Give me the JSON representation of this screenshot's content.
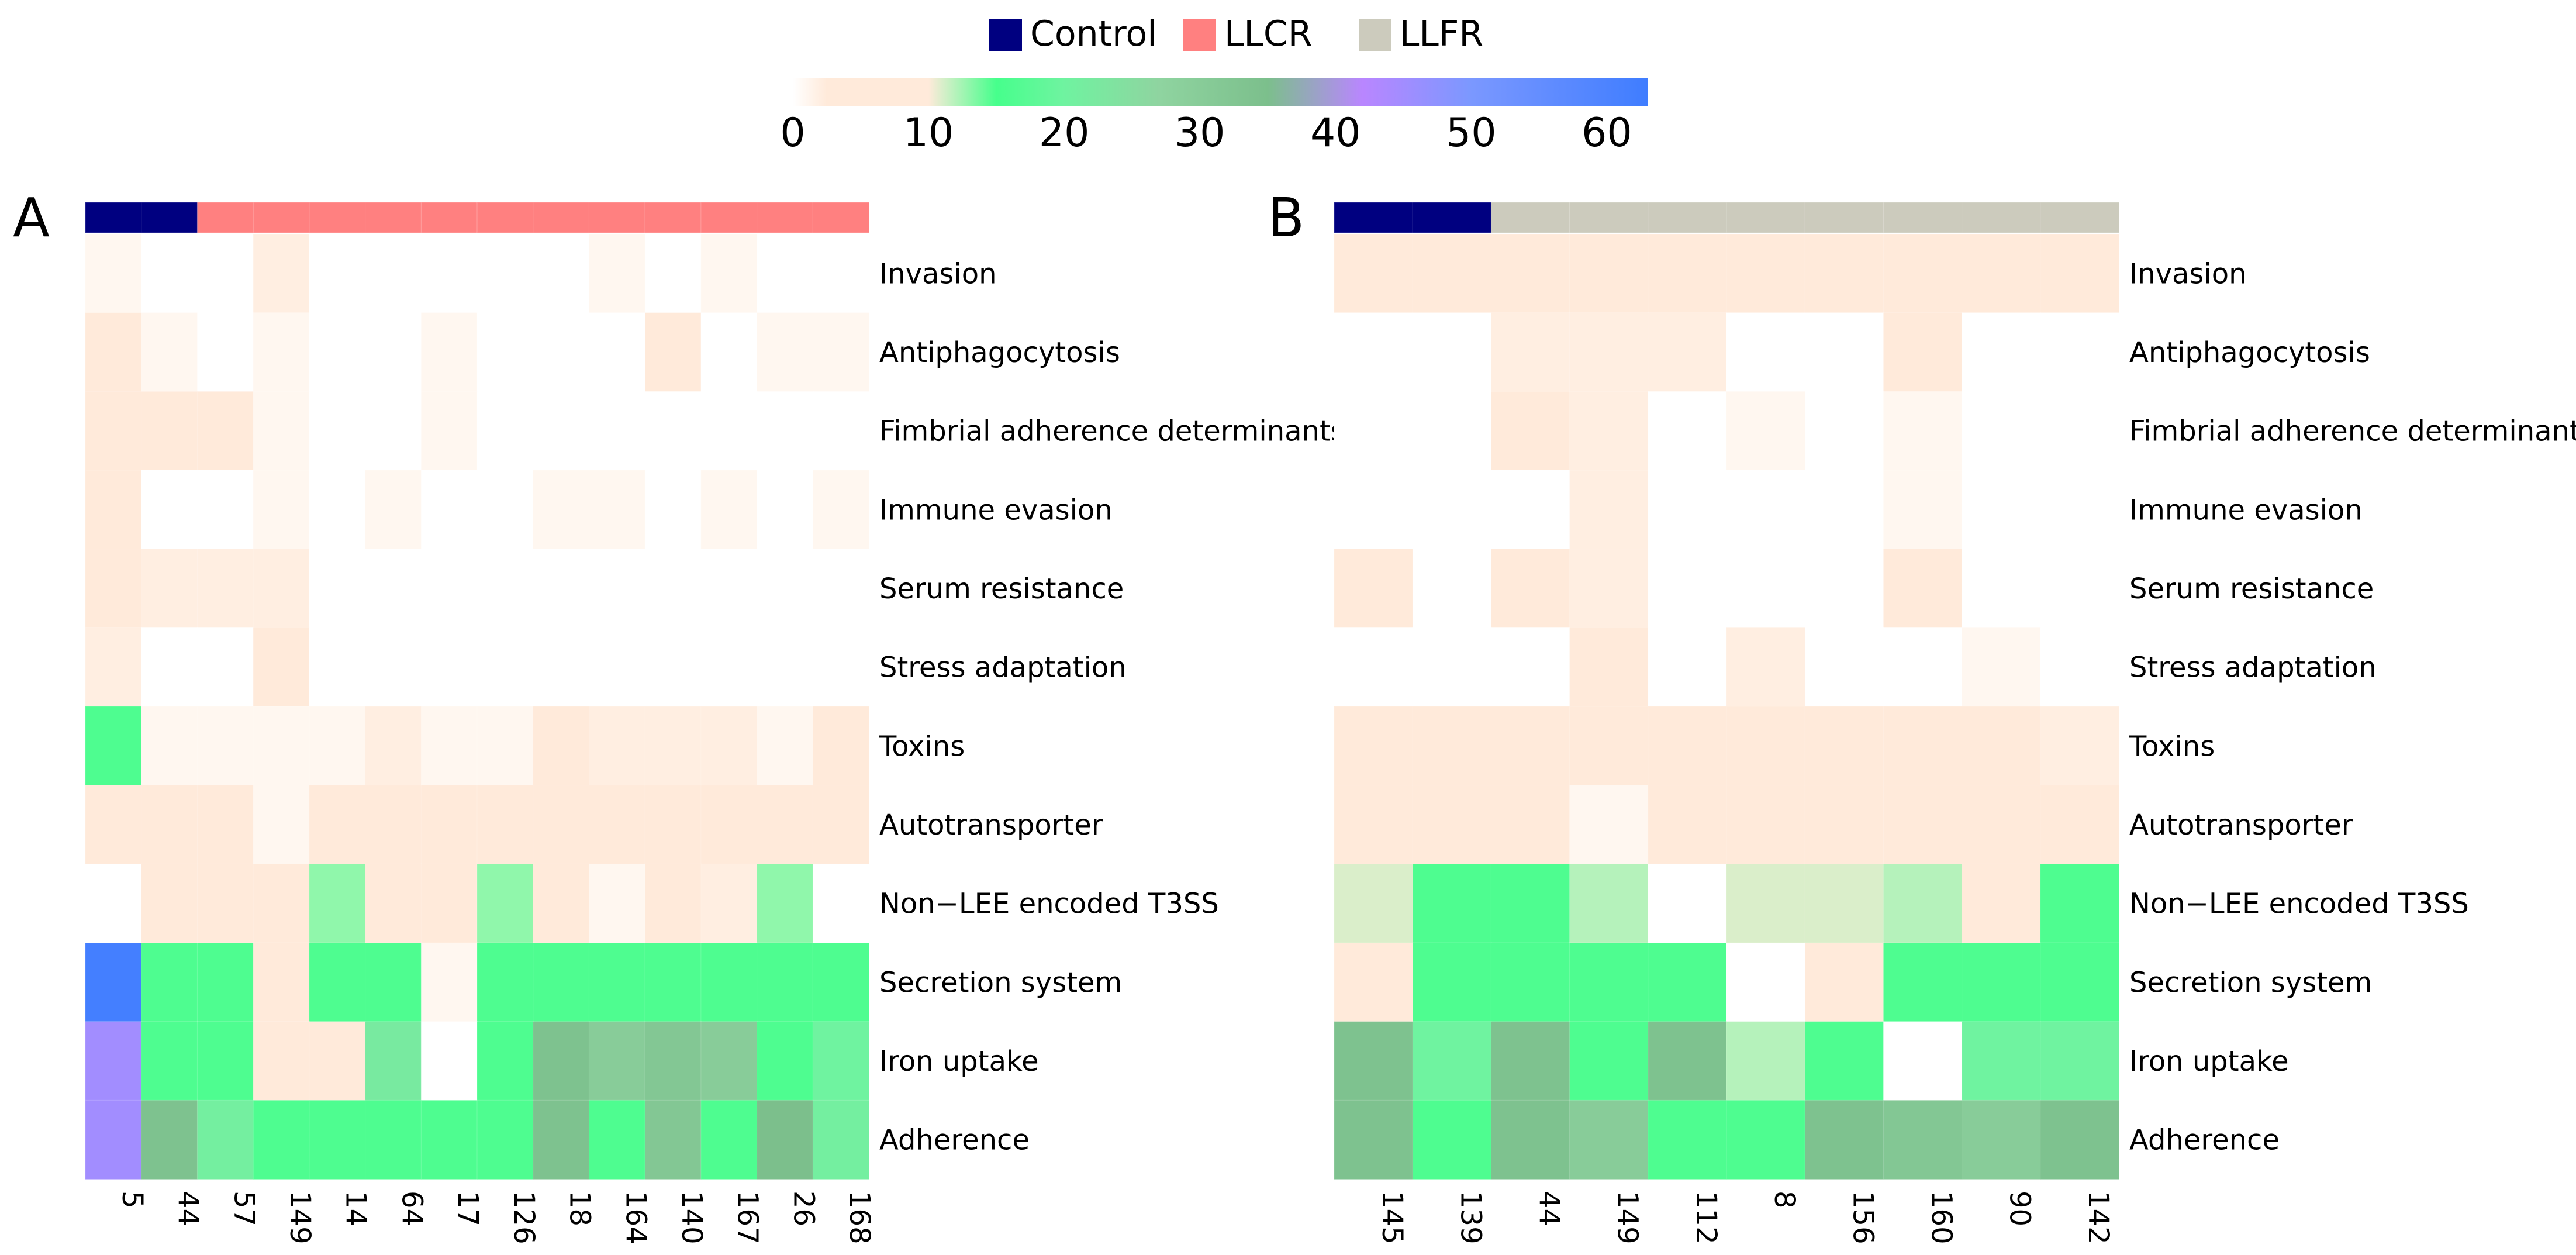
{
  "legend": {
    "groups": [
      {
        "name": "Control",
        "color": "#000080"
      },
      {
        "name": "LLCR",
        "color": "#ff8080"
      },
      {
        "name": "LLFR",
        "color": "#cccbbd"
      }
    ],
    "colorbar": {
      "ticks": [
        "0",
        "10",
        "20",
        "30",
        "40",
        "50",
        "60"
      ],
      "range": [
        0,
        63
      ],
      "stops": [
        {
          "v": 0,
          "color": "#ffffff"
        },
        {
          "v": 2.5,
          "color": "#ffeada"
        },
        {
          "v": 10,
          "color": "#ffeada"
        },
        {
          "v": 15,
          "color": "#46ff8c"
        },
        {
          "v": 20,
          "color": "#6ff3a0"
        },
        {
          "v": 27,
          "color": "#8fd4a0"
        },
        {
          "v": 35,
          "color": "#7cbf8c"
        },
        {
          "v": 42,
          "color": "#b986ff"
        },
        {
          "v": 50,
          "color": "#7b98ff"
        },
        {
          "v": 63,
          "color": "#3f7dff"
        }
      ]
    }
  },
  "chart_data": [
    {
      "type": "heatmap",
      "panel_label": "A",
      "rows": [
        "Invasion",
        "Antiphagocytosis",
        "Fimbrial adherence determinants",
        "Immune evasion",
        "Serum resistance",
        "Stress adaptation",
        "Toxins",
        "Autotransporter",
        "Non−LEE encoded T3SS",
        "Secretion system",
        "Iron uptake",
        "Adherence"
      ],
      "columns": [
        "5",
        "44",
        "57",
        "149",
        "14",
        "64",
        "17",
        "126",
        "18",
        "164",
        "140",
        "167",
        "26",
        "168"
      ],
      "column_groups": [
        "Control",
        "Control",
        "LLCR",
        "LLCR",
        "LLCR",
        "LLCR",
        "LLCR",
        "LLCR",
        "LLCR",
        "LLCR",
        "LLCR",
        "LLCR",
        "LLCR",
        "LLCR"
      ],
      "values": [
        [
          1,
          0,
          0,
          2,
          0,
          0,
          0,
          0,
          0,
          1,
          0,
          1,
          0,
          0
        ],
        [
          4,
          1,
          0,
          1,
          0,
          0,
          1,
          0,
          0,
          0,
          7,
          0,
          1,
          1
        ],
        [
          4,
          3,
          5,
          1,
          0,
          0,
          1,
          0,
          0,
          0,
          0,
          0,
          0,
          0
        ],
        [
          4,
          0,
          0,
          1,
          0,
          1,
          0,
          0,
          1,
          1,
          0,
          1,
          0,
          1
        ],
        [
          4,
          2,
          2,
          2,
          0,
          0,
          0,
          0,
          0,
          0,
          0,
          0,
          0,
          0
        ],
        [
          2,
          0,
          0,
          3,
          0,
          0,
          0,
          0,
          0,
          0,
          0,
          0,
          0,
          0
        ],
        [
          16,
          1,
          1,
          1,
          1,
          2,
          1,
          1,
          4,
          2,
          2,
          2,
          1,
          4
        ],
        [
          5,
          5,
          5,
          1,
          5,
          5,
          5,
          5,
          5,
          5,
          5,
          5,
          5,
          5
        ],
        [
          0,
          5,
          5,
          5,
          13,
          5,
          6,
          13,
          5,
          1,
          6,
          2,
          13,
          0
        ],
        [
          62,
          16,
          16,
          6,
          16,
          16,
          1,
          16,
          16,
          16,
          16,
          16,
          16,
          16
        ],
        [
          45,
          16,
          16,
          5,
          5,
          22,
          0,
          16,
          34,
          30,
          32,
          30,
          16,
          20
        ],
        [
          45,
          34,
          21,
          16,
          16,
          16,
          16,
          16,
          34,
          16,
          32,
          16,
          35,
          21
        ]
      ]
    },
    {
      "type": "heatmap",
      "panel_label": "B",
      "rows": [
        "Invasion",
        "Antiphagocytosis",
        "Fimbrial adherence determinants",
        "Immune evasion",
        "Serum resistance",
        "Stress adaptation",
        "Toxins",
        "Autotransporter",
        "Non−LEE encoded T3SS",
        "Secretion system",
        "Iron uptake",
        "Adherence"
      ],
      "columns": [
        "145",
        "139",
        "44",
        "149",
        "112",
        "8",
        "156",
        "160",
        "90",
        "142"
      ],
      "column_groups": [
        "Control",
        "Control",
        "LLFR",
        "LLFR",
        "LLFR",
        "LLFR",
        "LLFR",
        "LLFR",
        "LLFR",
        "LLFR"
      ],
      "values": [
        [
          5,
          5,
          5,
          5,
          5,
          5,
          5,
          5,
          5,
          5
        ],
        [
          0,
          0,
          2,
          2,
          2,
          0,
          0,
          6,
          0,
          0
        ],
        [
          0,
          0,
          6,
          2,
          0,
          1,
          0,
          1,
          0,
          0
        ],
        [
          0,
          0,
          0,
          2,
          0,
          0,
          0,
          1,
          0,
          0
        ],
        [
          3,
          0,
          3,
          2,
          0,
          0,
          0,
          7,
          0,
          0
        ],
        [
          0,
          0,
          0,
          5,
          0,
          2,
          0,
          0,
          1,
          0
        ],
        [
          3,
          3,
          3,
          6,
          3,
          3,
          6,
          3,
          5,
          2
        ],
        [
          5,
          5,
          5,
          1,
          5,
          5,
          5,
          5,
          5,
          5
        ],
        [
          11,
          16,
          16,
          12,
          0,
          11,
          11,
          12,
          3,
          16
        ],
        [
          5,
          16,
          16,
          16,
          16,
          0,
          5,
          16,
          16,
          16
        ],
        [
          34,
          20,
          34,
          16,
          34,
          12,
          16,
          0,
          20,
          20
        ],
        [
          34,
          16,
          34,
          30,
          16,
          16,
          34,
          32,
          30,
          34
        ]
      ]
    }
  ]
}
